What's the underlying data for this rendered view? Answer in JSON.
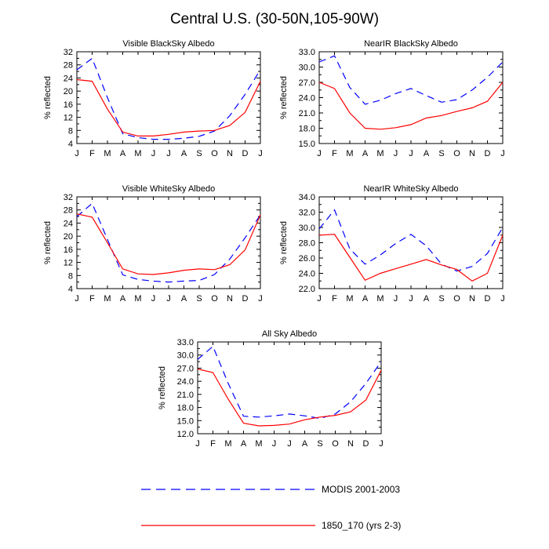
{
  "page": {
    "title": "Central U.S. (30-50N,105-90W)"
  },
  "colors": {
    "modis": "#0000ff",
    "model": "#ff0000",
    "axis": "#000000"
  },
  "legend": {
    "placement": "bottom",
    "items": [
      {
        "label": "MODIS 2001-2003",
        "style": "dashed",
        "color": "#0000ff"
      },
      {
        "label": "1850_170 (yrs 2-3)",
        "style": "solid",
        "color": "#ff0000"
      }
    ]
  },
  "chart_data": [
    {
      "type": "line",
      "title": "Visible BlackSky Albedo",
      "ylabel": "% reflected",
      "categories": [
        "J",
        "F",
        "M",
        "A",
        "M",
        "J",
        "J",
        "A",
        "S",
        "O",
        "N",
        "D",
        "J"
      ],
      "ylim": [
        4,
        32
      ],
      "yticks": [
        "4",
        "8",
        "12",
        "16",
        "20",
        "24",
        "28",
        "32"
      ],
      "series": [
        {
          "name": "MODIS 2001-2003",
          "values": [
            26.5,
            30.0,
            18.0,
            7.0,
            5.8,
            5.3,
            5.3,
            5.6,
            6.2,
            7.8,
            12.5,
            19.0,
            26.5
          ]
        },
        {
          "name": "1850_170 (yrs 2-3)",
          "values": [
            23.5,
            23.0,
            14.5,
            7.5,
            6.3,
            6.3,
            6.8,
            7.5,
            7.8,
            8.0,
            9.5,
            13.5,
            23.0
          ]
        }
      ]
    },
    {
      "type": "line",
      "title": "NearIR BlackSky Albedo",
      "ylabel": "% reflected",
      "categories": [
        "J",
        "F",
        "M",
        "A",
        "M",
        "J",
        "J",
        "A",
        "S",
        "O",
        "N",
        "D",
        "J"
      ],
      "ylim": [
        15,
        33
      ],
      "yticks": [
        "15.0",
        "18.0",
        "21.0",
        "24.0",
        "27.0",
        "30.0",
        "33.0"
      ],
      "series": [
        {
          "name": "MODIS 2001-2003",
          "values": [
            31.0,
            32.2,
            26.0,
            22.7,
            23.5,
            24.8,
            25.8,
            24.4,
            23.1,
            23.6,
            25.5,
            28.0,
            31.0
          ]
        },
        {
          "name": "1850_170 (yrs 2-3)",
          "values": [
            27.0,
            25.8,
            21.0,
            18.0,
            17.8,
            18.1,
            18.7,
            20.0,
            20.5,
            21.3,
            22.0,
            23.3,
            27.0
          ]
        }
      ]
    },
    {
      "type": "line",
      "title": "Visible WhiteSky Albedo",
      "ylabel": "% reflected",
      "categories": [
        "J",
        "F",
        "M",
        "A",
        "M",
        "J",
        "J",
        "A",
        "S",
        "O",
        "N",
        "D",
        "J"
      ],
      "ylim": [
        4,
        32
      ],
      "yticks": [
        "4",
        "8",
        "12",
        "16",
        "20",
        "24",
        "28",
        "32"
      ],
      "series": [
        {
          "name": "MODIS 2001-2003",
          "values": [
            26.0,
            30.0,
            19.0,
            8.2,
            6.8,
            6.3,
            6.0,
            6.3,
            6.5,
            8.3,
            13.0,
            19.5,
            26.5
          ]
        },
        {
          "name": "1850_170 (yrs 2-3)",
          "values": [
            26.8,
            25.8,
            18.0,
            10.0,
            8.5,
            8.3,
            8.8,
            9.6,
            10.0,
            9.8,
            11.3,
            15.8,
            26.5
          ]
        }
      ]
    },
    {
      "type": "line",
      "title": "NearIR WhiteSky Albedo",
      "ylabel": "% reflected",
      "categories": [
        "J",
        "F",
        "M",
        "A",
        "M",
        "J",
        "J",
        "A",
        "S",
        "O",
        "N",
        "D",
        "J"
      ],
      "ylim": [
        22,
        34
      ],
      "yticks": [
        "22.0",
        "24.0",
        "26.0",
        "28.0",
        "30.0",
        "32.0",
        "34.0"
      ],
      "series": [
        {
          "name": "MODIS 2001-2003",
          "values": [
            29.8,
            32.3,
            27.2,
            25.2,
            26.4,
            27.9,
            29.1,
            27.6,
            25.2,
            24.3,
            24.9,
            26.6,
            30.0
          ]
        },
        {
          "name": "1850_170 (yrs 2-3)",
          "values": [
            29.0,
            29.1,
            26.1,
            23.1,
            24.0,
            24.6,
            25.2,
            25.8,
            25.1,
            24.5,
            23.0,
            24.0,
            29.0
          ]
        }
      ]
    },
    {
      "type": "line",
      "title": "All Sky Albedo",
      "ylabel": "% reflected",
      "categories": [
        "J",
        "F",
        "M",
        "A",
        "M",
        "J",
        "J",
        "A",
        "S",
        "O",
        "N",
        "D",
        "J"
      ],
      "ylim": [
        12,
        33
      ],
      "yticks": [
        "12.0",
        "15.0",
        "18.0",
        "21.0",
        "24.0",
        "27.0",
        "30.0",
        "33.0"
      ],
      "series": [
        {
          "name": "MODIS 2001-2003",
          "values": [
            29.0,
            32.0,
            23.5,
            16.0,
            15.8,
            16.1,
            16.5,
            16.1,
            15.5,
            16.5,
            19.3,
            23.5,
            28.5
          ]
        },
        {
          "name": "1850_170 (yrs 2-3)",
          "values": [
            26.8,
            26.0,
            19.9,
            14.4,
            13.8,
            13.9,
            14.2,
            15.2,
            15.8,
            16.2,
            17.0,
            19.7,
            26.5
          ]
        }
      ]
    }
  ]
}
